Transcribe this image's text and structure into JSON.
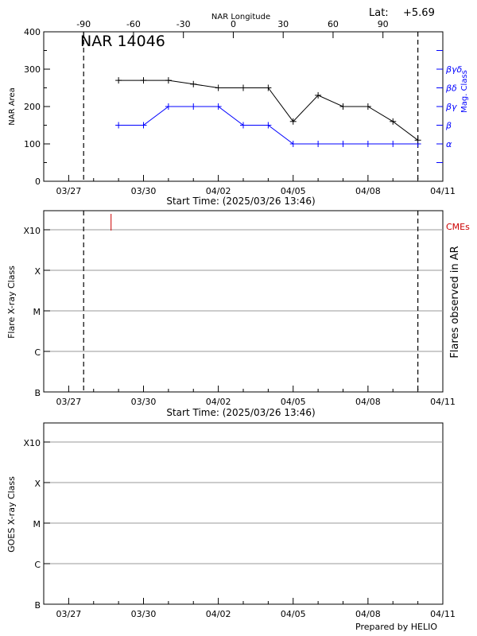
{
  "chart_data": [
    {
      "type": "line",
      "title": "NAR 14046",
      "top_axis_label": "NAR Longitude",
      "lat_label": "Lat:",
      "lat_value": "+5.69",
      "xlabel": "Start Time: (2025/03/26 13:46)",
      "ylabel": "NAR Area",
      "y2label": "Mag. Class",
      "x_tick_labels": [
        "03/27",
        "03/30",
        "04/02",
        "04/05",
        "04/08",
        "04/11"
      ],
      "x_tick_days": [
        1,
        4,
        7,
        10,
        13,
        16
      ],
      "x_range_days": [
        0,
        16
      ],
      "top_tick_labels": [
        "-90",
        "-60",
        "-30",
        "0",
        "30",
        "60",
        "90"
      ],
      "top_tick_days": [
        1.6,
        3.6,
        5.6,
        7.6,
        9.6,
        11.6,
        13.6
      ],
      "ylim": [
        0,
        400
      ],
      "y_ticks": [
        "0",
        "100",
        "200",
        "300",
        "400"
      ],
      "mag_class_ticks": [
        "α",
        "β",
        "βγ",
        "βδ",
        "βγδ"
      ],
      "dashed_lines_days": [
        1.6,
        15.0
      ],
      "colors": {
        "area": "#000000",
        "mag": "#0000ff"
      },
      "series": [
        {
          "name": "NAR Area",
          "x_days": [
            3.0,
            4.0,
            5.0,
            6.0,
            7.0,
            8.0,
            9.0,
            10.0,
            11.0,
            12.0,
            13.0,
            14.0,
            15.0
          ],
          "values": [
            270,
            270,
            270,
            260,
            250,
            250,
            250,
            160,
            230,
            200,
            200,
            160,
            110
          ]
        },
        {
          "name": "Mag. Class",
          "x_days": [
            3.0,
            4.0,
            5.0,
            6.0,
            7.0,
            8.0,
            9.0,
            10.0,
            11.0,
            12.0,
            13.0,
            14.0,
            15.0
          ],
          "values": [
            2,
            2,
            3,
            3,
            3,
            2,
            2,
            1,
            1,
            1,
            1,
            1,
            1
          ]
        }
      ]
    },
    {
      "type": "scatter",
      "xlabel": "Start Time: (2025/03/26 13:46)",
      "ylabel": "Flare X-ray Class",
      "y2label": "Flares observed in AR",
      "cme_label": "CMEs",
      "y_classes": [
        "B",
        "C",
        "M",
        "X",
        "X10"
      ],
      "x_tick_labels": [
        "03/27",
        "03/30",
        "04/02",
        "04/05",
        "04/08",
        "04/11"
      ],
      "dashed_lines_days": [
        1.6,
        15.0
      ],
      "cme_events_days": [
        2.7
      ],
      "colors": {
        "cme": "#cc0000"
      }
    },
    {
      "type": "line",
      "ylabel": "GOES X-ray Class",
      "y_classes": [
        "B",
        "C",
        "M",
        "X",
        "X10"
      ],
      "x_tick_labels": [
        "03/27",
        "03/30",
        "04/02",
        "04/05",
        "04/08",
        "04/11"
      ],
      "footer": "Prepared by HELIO"
    }
  ]
}
